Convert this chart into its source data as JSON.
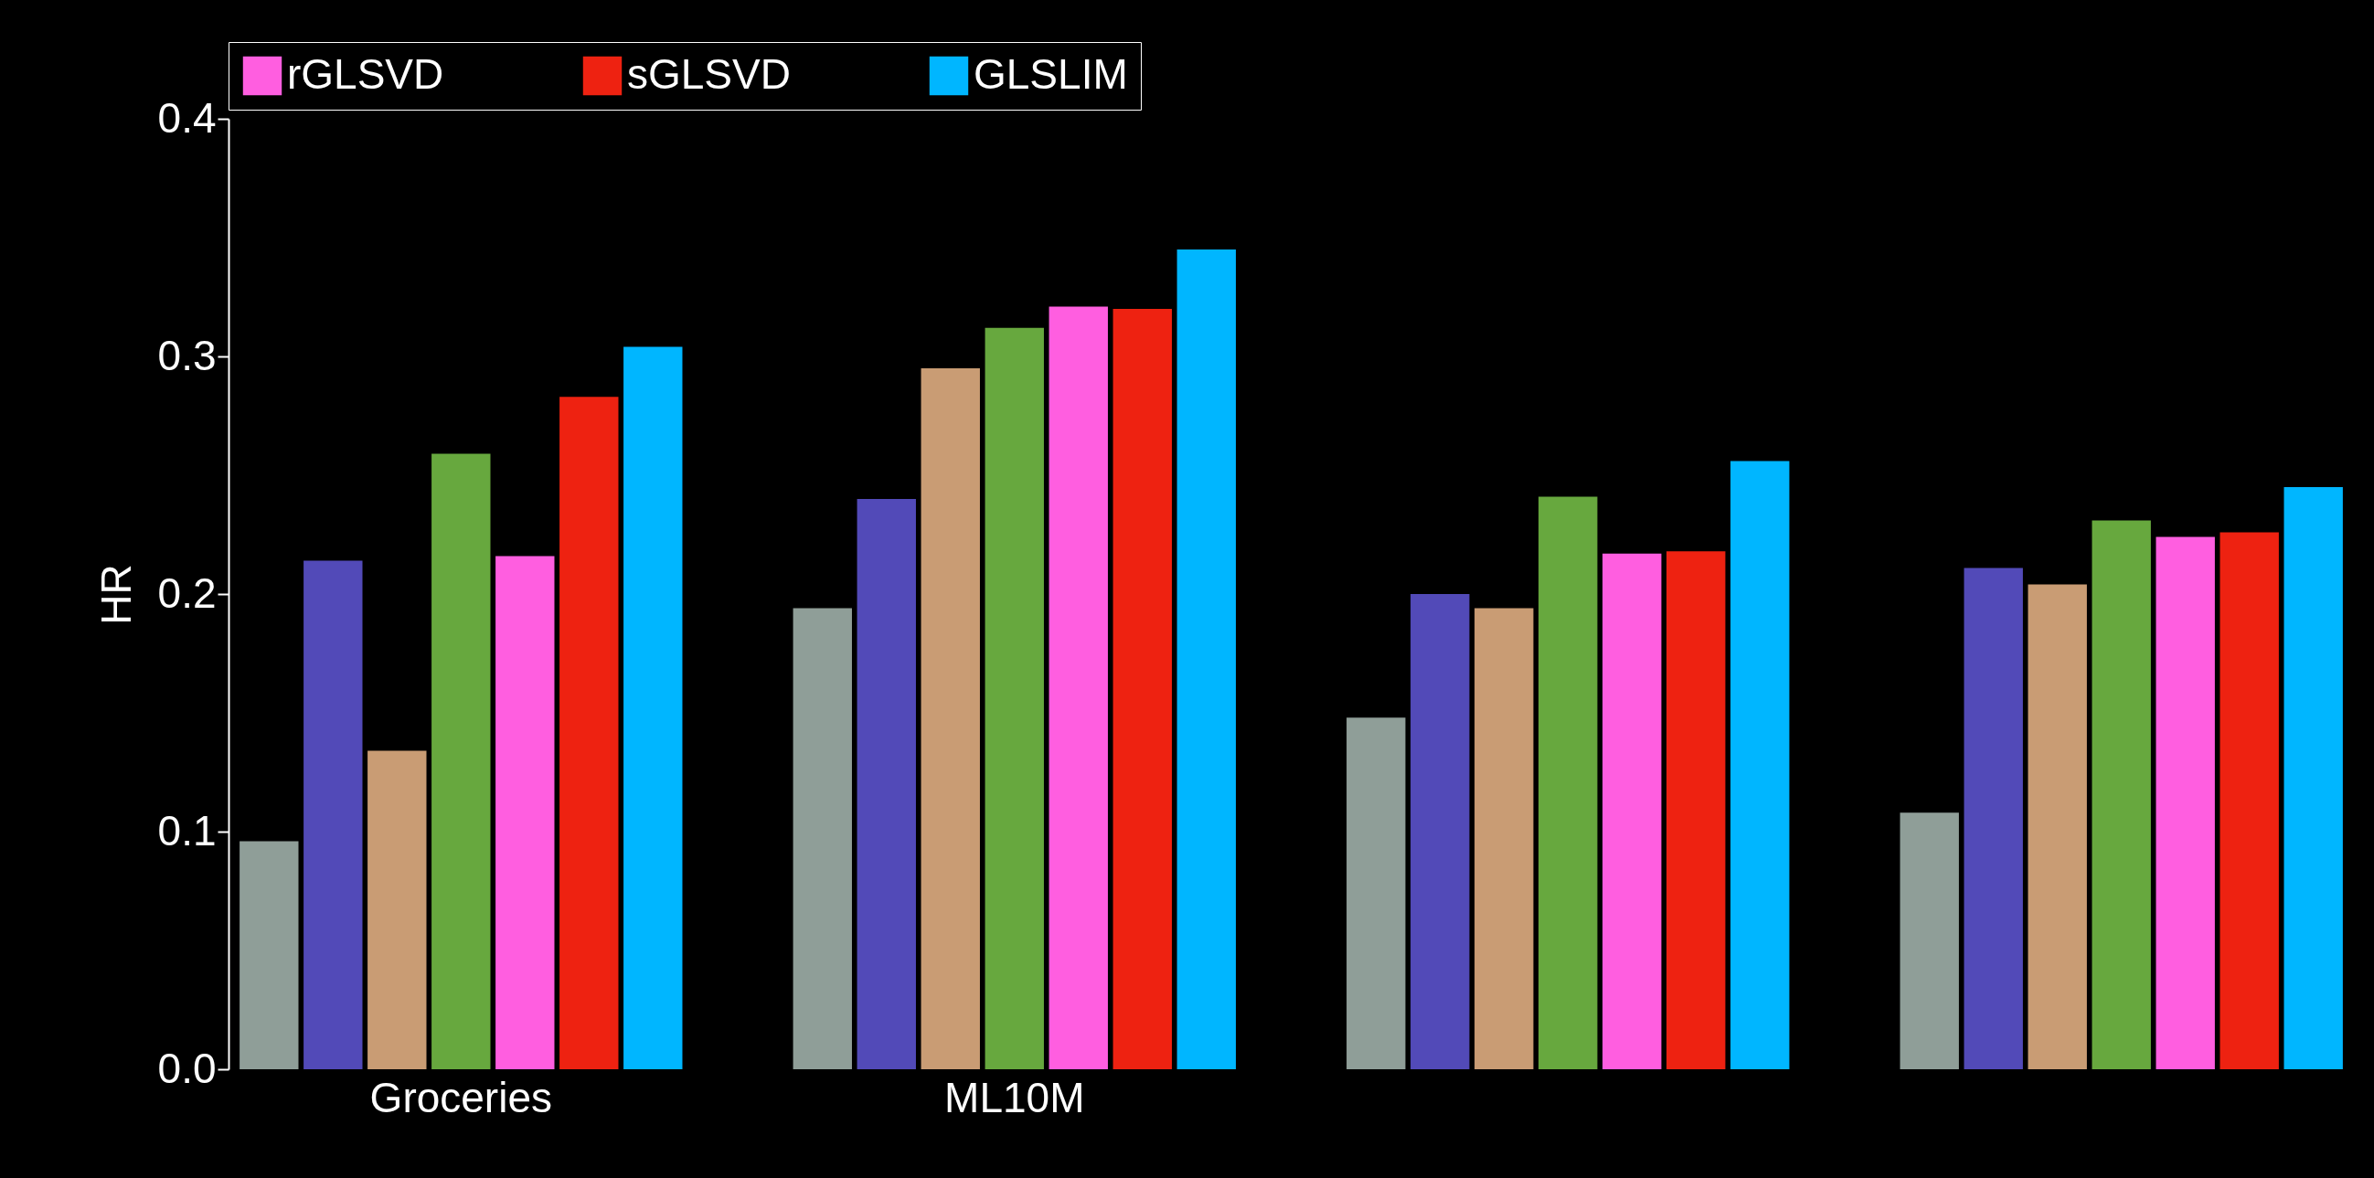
{
  "chart_data": {
    "type": "bar",
    "ylabel": "HR",
    "categories": [
      "Groceries",
      "ML10M",
      null,
      null
    ],
    "series": [
      {
        "color": "#8f9e98",
        "values": [
          0.096,
          0.194,
          0.148,
          0.108
        ]
      },
      {
        "color": "#524ab8",
        "values": [
          0.214,
          0.24,
          0.2,
          0.211
        ]
      },
      {
        "color": "#c99c74",
        "values": [
          0.134,
          0.295,
          0.194,
          0.204
        ]
      },
      {
        "color": "#67a83e",
        "values": [
          0.259,
          0.312,
          0.241,
          0.231
        ]
      },
      {
        "name": "rGLSVD",
        "color": "#ff5ee0",
        "values": [
          0.216,
          0.321,
          0.217,
          0.224
        ]
      },
      {
        "name": "sGLSVD",
        "color": "#ee2211",
        "values": [
          0.283,
          0.32,
          0.218,
          0.226
        ]
      },
      {
        "name": "GLSLIM",
        "color": "#00b6ff",
        "values": [
          0.304,
          0.345,
          0.256,
          0.245
        ]
      }
    ],
    "ylim": [
      0,
      0.4
    ],
    "yticks": [
      {
        "value": 0,
        "label": "0.0"
      },
      0.1,
      0.2,
      0.3,
      0.4
    ],
    "legend": "top"
  }
}
